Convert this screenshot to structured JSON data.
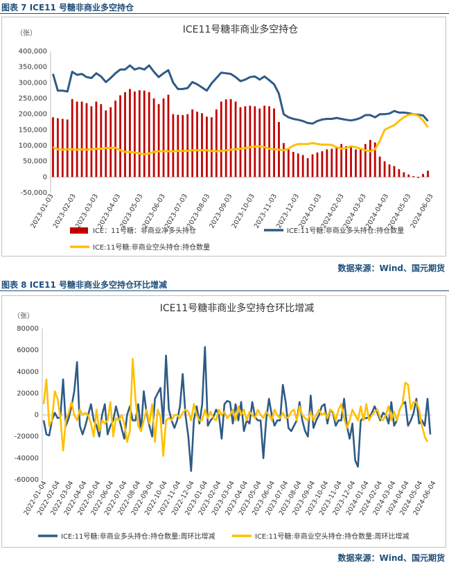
{
  "figure7": {
    "caption": "图表 7  ICE11 号糖非商业多空持仓",
    "source": "数据来源：Wind、国元期货"
  },
  "figure8": {
    "caption": "图表 8  ICE11 号糖非商业多空持仓环比增减",
    "source": "数据来源：Wind、国元期货"
  },
  "chart_data": [
    {
      "type": "bar+line",
      "title": "ICE11号糖非商业多空持仓",
      "ylabel": "（张）",
      "ylim": [
        -50000,
        400000
      ],
      "yticks": [
        -50000,
        0,
        50000,
        100000,
        150000,
        200000,
        250000,
        300000,
        350000,
        400000
      ],
      "ytick_labels": [
        "-50,000",
        "0",
        "50,000",
        "100,000",
        "150,000",
        "200,000",
        "250,000",
        "300,000",
        "350,000",
        "400,000"
      ],
      "x_tick_labels": [
        "2023-01-03",
        "2023-02-03",
        "2023-03-03",
        "2023-04-03",
        "2023-05-03",
        "2023-06-03",
        "2023-07-03",
        "2023-08-03",
        "2023-09-03",
        "2023-10-03",
        "2023-11-03",
        "2023-12-03",
        "2024-01-03",
        "2024-02-03",
        "2024-03-03",
        "2024-04-03",
        "2024-05-03",
        "2024-06-03"
      ],
      "series": [
        {
          "name": "ICE：11号糖：非商业净多头持仓",
          "kind": "bar",
          "color": "#c00000",
          "values": [
            190000,
            187000,
            185000,
            183000,
            248000,
            240000,
            240000,
            235000,
            225000,
            240000,
            232000,
            212000,
            222000,
            243000,
            260000,
            270000,
            280000,
            272000,
            276000,
            275000,
            270000,
            250000,
            232000,
            250000,
            262000,
            200000,
            198000,
            197000,
            200000,
            215000,
            208000,
            203000,
            192000,
            190000,
            215000,
            240000,
            247000,
            248000,
            240000,
            222000,
            225000,
            227000,
            225000,
            218000,
            227000,
            225000,
            218000,
            175000,
            108000,
            90000,
            80000,
            75000,
            70000,
            60000,
            72000,
            78000,
            82000,
            88000,
            90000,
            95000,
            105000,
            98000,
            95000,
            88000,
            92000,
            105000,
            118000,
            110000,
            65000,
            50000,
            40000,
            35000,
            25000,
            15000,
            8000,
            3000,
            -3000,
            10000,
            20000
          ]
        },
        {
          "name": "ICE:11号糖:非商业多头持仓:持仓数量",
          "kind": "line",
          "color": "#2e5a87",
          "values": [
            328000,
            275000,
            275000,
            272000,
            335000,
            325000,
            328000,
            318000,
            315000,
            330000,
            320000,
            302000,
            315000,
            330000,
            342000,
            342000,
            355000,
            342000,
            347000,
            342000,
            355000,
            335000,
            318000,
            330000,
            340000,
            300000,
            280000,
            280000,
            283000,
            302000,
            295000,
            285000,
            275000,
            298000,
            315000,
            332000,
            330000,
            328000,
            318000,
            305000,
            310000,
            318000,
            320000,
            310000,
            320000,
            308000,
            295000,
            265000,
            200000,
            190000,
            185000,
            182000,
            178000,
            172000,
            170000,
            178000,
            183000,
            185000,
            185000,
            188000,
            185000,
            182000,
            180000,
            183000,
            188000,
            197000,
            197000,
            190000,
            200000,
            200000,
            202000,
            210000,
            205000,
            205000,
            203000,
            200000,
            198000,
            196000,
            178000
          ]
        },
        {
          "name": "ICE:11号糖:非商业空头持仓:持仓数量",
          "kind": "line",
          "color": "#ffc000",
          "values": [
            95000,
            88000,
            87000,
            88000,
            88000,
            87000,
            88000,
            87000,
            88000,
            90000,
            90000,
            92000,
            93000,
            93000,
            85000,
            80000,
            80000,
            78000,
            75000,
            72000,
            75000,
            80000,
            82000,
            82000,
            82000,
            82000,
            83000,
            83000,
            83000,
            85000,
            85000,
            85000,
            85000,
            83000,
            82000,
            83000,
            85000,
            87000,
            88000,
            90000,
            92000,
            95000,
            97000,
            97000,
            95000,
            90000,
            88000,
            87000,
            85000,
            90000,
            100000,
            105000,
            105000,
            105000,
            108000,
            105000,
            103000,
            103000,
            102000,
            95000,
            90000,
            92000,
            98000,
            95000,
            90000,
            85000,
            82000,
            88000,
            115000,
            150000,
            158000,
            165000,
            178000,
            190000,
            198000,
            200000,
            195000,
            180000,
            158000
          ]
        }
      ],
      "legend": "bottom"
    },
    {
      "type": "line",
      "title": "ICE11号糖非商业多空持仓环比增减",
      "ylabel": "（张）",
      "ylim": [
        -60000,
        80000
      ],
      "yticks": [
        -60000,
        -40000,
        -20000,
        0,
        20000,
        40000,
        60000,
        80000
      ],
      "ytick_labels": [
        "-60000",
        "-40000",
        "-20000",
        "0",
        "20000",
        "40000",
        "60000",
        "80000"
      ],
      "x_tick_labels": [
        "2022-01-04",
        "2022-02-04",
        "2022-03-04",
        "2022-04-04",
        "2022-05-04",
        "2022-06-04",
        "2022-07-04",
        "2022-08-04",
        "2022-09-04",
        "2022-10-04",
        "2022-11-04",
        "2022-12-04",
        "2023-01-04",
        "2023-02-04",
        "2023-03-04",
        "2023-04-04",
        "2023-05-04",
        "2023-06-04",
        "2023-07-04",
        "2023-08-04",
        "2023-09-04",
        "2023-10-04",
        "2023-11-04",
        "2023-12-04",
        "2024-01-04",
        "2024-02-04",
        "2024-03-04",
        "2024-04-04",
        "2024-05-04",
        "2024-06-04"
      ],
      "series": [
        {
          "name": "ICE:11号糖:非商业多头持仓:持仓数量:周环比增减",
          "color": "#2e5a87",
          "values": [
            -5000,
            -18000,
            -19000,
            -5000,
            2000,
            -3000,
            -2000,
            33000,
            -10000,
            -3000,
            8000,
            22000,
            49000,
            -10000,
            -18000,
            -10000,
            0,
            10000,
            -5000,
            -10000,
            -20000,
            0,
            10000,
            -18000,
            -10000,
            -5000,
            8000,
            -2000,
            -12000,
            -22000,
            0,
            8000,
            -5000,
            -5000,
            10000,
            -15000,
            22000,
            2000,
            -10000,
            -20000,
            15000,
            20000,
            25000,
            -8000,
            55000,
            5000,
            -5000,
            -12000,
            -5000,
            8000,
            38000,
            0,
            -20000,
            -52000,
            -5000,
            8000,
            -8000,
            10000,
            63000,
            -10000,
            -5000,
            -2000,
            5000,
            0,
            -22000,
            10000,
            13000,
            12000,
            -8000,
            10000,
            -5000,
            12000,
            -15000,
            -5000,
            -8000,
            12000,
            -2000,
            -5000,
            -5000,
            -40000,
            -5000,
            15000,
            0,
            -10000,
            -5000,
            -5000,
            28000,
            12000,
            -12000,
            -15000,
            -10000,
            -5000,
            12000,
            -5000,
            -15000,
            -20000,
            18000,
            -12000,
            -5000,
            0,
            8000,
            10000,
            -8000,
            5000,
            2000,
            -10000,
            -5000,
            -5000,
            15000,
            -10000,
            -22000,
            -8000,
            -42000,
            -48000,
            -5000,
            -3000,
            -3000,
            -2000,
            2000,
            8000,
            2000,
            -5000,
            2000,
            0,
            -8000,
            12000,
            -10000,
            -5000,
            5000,
            10000,
            12000,
            -10000,
            -5000,
            2000,
            15000,
            -8000,
            -5000,
            -10000,
            15000,
            -18000
          ]
        },
        {
          "name": "ICE:11号糖:非商业空头持仓:持仓数量:周环比增减",
          "color": "#ffc000",
          "values": [
            10000,
            33000,
            -10000,
            -5000,
            22000,
            15000,
            -2000,
            -33000,
            -5000,
            2000,
            12000,
            0,
            -5000,
            5000,
            0,
            2000,
            0,
            -8000,
            -20000,
            5000,
            -15000,
            -5000,
            -8000,
            -5000,
            12000,
            -20000,
            -3000,
            -5000,
            0,
            -8000,
            -25000,
            -15000,
            52000,
            15000,
            -10000,
            -15000,
            -5000,
            5000,
            -8000,
            10000,
            -25000,
            5000,
            -2000,
            -38000,
            -5000,
            -3000,
            -5000,
            0,
            0,
            -3000,
            2000,
            5000,
            3000,
            -5000,
            10000,
            0,
            -5000,
            -5000,
            5000,
            -3000,
            3000,
            -3000,
            -5000,
            5000,
            0,
            3000,
            -3000,
            0,
            5000,
            -5000,
            8000,
            0,
            5000,
            -5000,
            3000,
            0,
            -3000,
            5000,
            0,
            -3000,
            3000,
            0,
            -5000,
            5000,
            0,
            -3000,
            2000,
            -3000,
            -2000,
            3000,
            5000,
            -5000,
            8000,
            0,
            -3000,
            -5000,
            3000,
            -5000,
            0,
            5000,
            0,
            2000,
            -3000,
            5000,
            3000,
            -5000,
            5000,
            10000,
            -3000,
            -12000,
            -5000,
            5000,
            0,
            -5000,
            8000,
            -5000,
            10000,
            -5000,
            0,
            3000,
            5000,
            -3000,
            -5000,
            0,
            8000,
            -5000,
            3000,
            -5000,
            5000,
            10000,
            30000,
            28000,
            5000,
            12000,
            12000,
            5000,
            -10000,
            -20000,
            -25000
          ]
        }
      ],
      "legend": "bottom"
    }
  ]
}
